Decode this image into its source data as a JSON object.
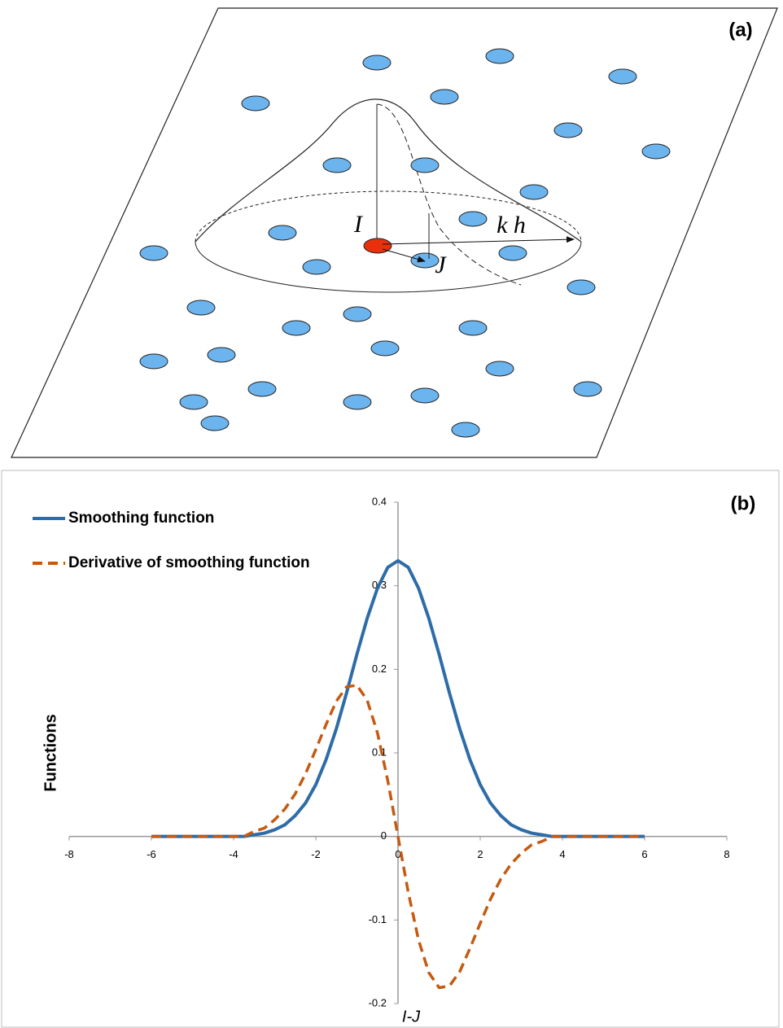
{
  "panel_a": {
    "label": "(a)",
    "center": "I",
    "neighbor": "J",
    "radius": "k h"
  },
  "chart_data": {
    "type": "line",
    "panel_label": "(b)",
    "x_label": "I-J",
    "y_label": "Functions",
    "x": [
      -6,
      -5,
      -4,
      -3.75,
      -3.5,
      -3.25,
      -3,
      -2.75,
      -2.5,
      -2.25,
      -2,
      -1.75,
      -1.5,
      -1.25,
      -1,
      -0.75,
      -0.5,
      -0.25,
      0,
      0.25,
      0.5,
      0.75,
      1,
      1.25,
      1.5,
      1.75,
      2,
      2.25,
      2.5,
      2.75,
      3,
      3.25,
      3.5,
      3.75,
      4,
      5,
      6
    ],
    "series": [
      {
        "name": "Smoothing function",
        "color": "#2e6ca8",
        "dashed": false,
        "values": [
          0,
          0,
          0,
          0,
          0.002,
          0.004,
          0.008,
          0.014,
          0.025,
          0.04,
          0.062,
          0.092,
          0.129,
          0.172,
          0.218,
          0.261,
          0.297,
          0.322,
          0.33,
          0.322,
          0.297,
          0.261,
          0.218,
          0.172,
          0.129,
          0.092,
          0.062,
          0.04,
          0.025,
          0.014,
          0.008,
          0.004,
          0.002,
          0,
          0,
          0,
          0
        ]
      },
      {
        "name": "Derivative of smoothing function",
        "color": "#c55a11",
        "dashed": true,
        "values": [
          0,
          0,
          0,
          0,
          0.006,
          0.01,
          0.02,
          0.033,
          0.051,
          0.075,
          0.104,
          0.134,
          0.162,
          0.179,
          0.181,
          0.163,
          0.124,
          0.067,
          0,
          -0.067,
          -0.124,
          -0.163,
          -0.181,
          -0.179,
          -0.162,
          -0.134,
          -0.104,
          -0.075,
          -0.051,
          -0.033,
          -0.02,
          -0.01,
          -0.006,
          0,
          0,
          0,
          0
        ]
      }
    ],
    "xlim": [
      -8,
      8
    ],
    "xticks": [
      -8,
      -6,
      -4,
      -2,
      0,
      2,
      4,
      6,
      8
    ],
    "ylim": [
      -0.2,
      0.4
    ],
    "yticks": [
      -0.2,
      -0.1,
      0,
      0.1,
      0.2,
      0.3,
      0.4
    ],
    "legend": "top-left"
  }
}
